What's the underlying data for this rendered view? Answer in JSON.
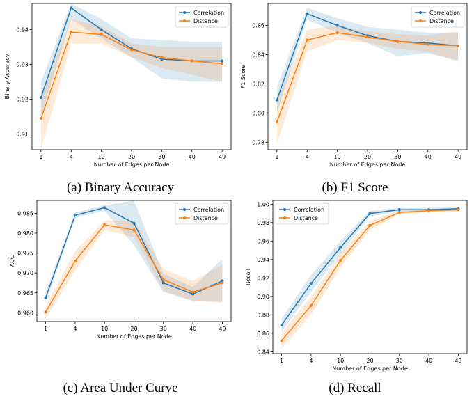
{
  "figure": {
    "panels": [
      {
        "caption": "(a) Binary Accuracy"
      },
      {
        "caption": "(b) F1 Score"
      },
      {
        "caption": "(c) Area Under Curve"
      },
      {
        "caption": "(d) Recall"
      }
    ]
  },
  "colors": {
    "correlation": "#1f77b4",
    "distance": "#ff7f0e"
  },
  "chart_data": [
    {
      "type": "line",
      "categories": [
        "1",
        "4",
        "10",
        "20",
        "30",
        "40",
        "49"
      ],
      "xlabel": "Number of Edges per Node",
      "ylabel": "Binary Accuracy",
      "ylim": [
        0.9055,
        0.9475
      ],
      "yticks": [
        0.91,
        0.92,
        0.93,
        0.94
      ],
      "ytick_labels": [
        "0.91",
        "0.92",
        "0.93",
        "0.94"
      ],
      "legend_position": "top-right",
      "series": [
        {
          "name": "Correlation",
          "color": "#1f77b4",
          "values": [
            0.9205,
            0.9462,
            0.94,
            0.9345,
            0.9315,
            0.931,
            0.931
          ],
          "lower": [
            0.915,
            0.943,
            0.9375,
            0.932,
            0.926,
            0.925,
            0.925
          ],
          "upper": [
            0.925,
            0.9475,
            0.943,
            0.9375,
            0.937,
            0.9365,
            0.9365
          ]
        },
        {
          "name": "Distance",
          "color": "#ff7f0e",
          "values": [
            0.9145,
            0.9393,
            0.9386,
            0.9342,
            0.932,
            0.931,
            0.9302
          ],
          "lower": [
            0.9055,
            0.936,
            0.936,
            0.932,
            0.929,
            0.927,
            0.925
          ],
          "upper": [
            0.921,
            0.943,
            0.941,
            0.936,
            0.935,
            0.935,
            0.935
          ]
        }
      ]
    },
    {
      "type": "line",
      "categories": [
        "1",
        "4",
        "10",
        "20",
        "30",
        "40",
        "49"
      ],
      "xlabel": "Number of Edges per Node",
      "ylabel": "F1 Score",
      "ylim": [
        0.775,
        0.875
      ],
      "yticks": [
        0.78,
        0.8,
        0.82,
        0.84,
        0.86
      ],
      "ytick_labels": [
        "0.78",
        "0.80",
        "0.82",
        "0.84",
        "0.86"
      ],
      "legend_position": "top-right",
      "series": [
        {
          "name": "Correlation",
          "color": "#1f77b4",
          "values": [
            0.809,
            0.868,
            0.86,
            0.853,
            0.849,
            0.848,
            0.846
          ],
          "lower": [
            0.8,
            0.864,
            0.855,
            0.848,
            0.839,
            0.841,
            0.836
          ],
          "upper": [
            0.818,
            0.872,
            0.865,
            0.859,
            0.857,
            0.855,
            0.855
          ]
        },
        {
          "name": "Distance",
          "color": "#ff7f0e",
          "values": [
            0.794,
            0.85,
            0.855,
            0.852,
            0.849,
            0.847,
            0.846
          ],
          "lower": [
            0.779,
            0.842,
            0.85,
            0.848,
            0.844,
            0.842,
            0.835
          ],
          "upper": [
            0.808,
            0.857,
            0.86,
            0.856,
            0.854,
            0.853,
            0.856
          ]
        }
      ]
    },
    {
      "type": "line",
      "categories": [
        "1",
        "4",
        "10",
        "20",
        "30",
        "40",
        "49"
      ],
      "xlabel": "Number of Edges per Node",
      "ylabel": "AUC",
      "ylim": [
        0.9578,
        0.9882
      ],
      "yticks": [
        0.96,
        0.965,
        0.97,
        0.975,
        0.98,
        0.985
      ],
      "ytick_labels": [
        "0.960",
        "0.965",
        "0.970",
        "0.975",
        "0.980",
        "0.985"
      ],
      "legend_position": "top-right",
      "series": [
        {
          "name": "Correlation",
          "color": "#1f77b4",
          "values": [
            0.9638,
            0.9845,
            0.9864,
            0.9825,
            0.9675,
            0.9647,
            0.968
          ],
          "lower": [
            0.9625,
            0.9838,
            0.9856,
            0.977,
            0.9652,
            0.963,
            0.9628
          ],
          "upper": [
            0.9652,
            0.9852,
            0.987,
            0.9882,
            0.9698,
            0.9665,
            0.9735
          ]
        },
        {
          "name": "Distance",
          "color": "#ff7f0e",
          "values": [
            0.9602,
            0.973,
            0.9821,
            0.9808,
            0.9683,
            0.9652,
            0.9675
          ],
          "lower": [
            0.9585,
            0.9705,
            0.9808,
            0.979,
            0.9655,
            0.963,
            0.9625
          ],
          "upper": [
            0.9618,
            0.9755,
            0.9832,
            0.983,
            0.971,
            0.968,
            0.972
          ]
        }
      ]
    },
    {
      "type": "line",
      "categories": [
        "1",
        "4",
        "10",
        "20",
        "30",
        "40",
        "49"
      ],
      "xlabel": "Number of Edges per Node",
      "ylabel": "Recall",
      "ylim": [
        0.838,
        1.004
      ],
      "yticks": [
        0.84,
        0.86,
        0.88,
        0.9,
        0.92,
        0.94,
        0.96,
        0.98,
        1.0
      ],
      "ytick_labels": [
        "0.84",
        "0.86",
        "0.88",
        "0.90",
        "0.92",
        "0.94",
        "0.96",
        "0.98",
        "1.00"
      ],
      "legend_position": "top-left",
      "series": [
        {
          "name": "Correlation",
          "color": "#1f77b4",
          "values": [
            0.869,
            0.914,
            0.953,
            0.99,
            0.994,
            0.994,
            0.995
          ],
          "lower": [
            0.862,
            0.905,
            0.946,
            0.987,
            0.992,
            0.992,
            0.993
          ],
          "upper": [
            0.876,
            0.923,
            0.96,
            0.993,
            0.996,
            0.996,
            0.997
          ]
        },
        {
          "name": "Distance",
          "color": "#ff7f0e",
          "values": [
            0.852,
            0.89,
            0.939,
            0.977,
            0.991,
            0.993,
            0.994
          ],
          "lower": [
            0.843,
            0.88,
            0.931,
            0.972,
            0.989,
            0.991,
            0.992
          ],
          "upper": [
            0.861,
            0.9,
            0.947,
            0.982,
            0.993,
            0.995,
            0.996
          ]
        }
      ]
    }
  ]
}
